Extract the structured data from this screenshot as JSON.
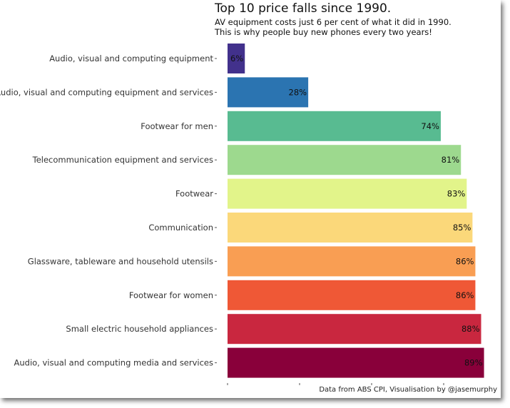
{
  "chart_data": {
    "type": "bar",
    "orientation": "horizontal",
    "title": "Top 10 price falls since 1990.",
    "subtitle": [
      "AV equipment costs just 6 per cent of what it did in 1990.",
      "This is why people buy new phones every two years!"
    ],
    "caption": "Data from ABS CPI, Visualisation by @jasemurphy",
    "xlabel": "",
    "ylabel": "",
    "xlim": [
      0,
      89
    ],
    "x_ticks": [
      0,
      25,
      50,
      75
    ],
    "x_tick_labels_shown": false,
    "grid": false,
    "categories": [
      "Audio, visual and computing equipment",
      "Audio, visual and computing equipment and services",
      "Footwear for men",
      "Telecommunication equipment and services",
      "Footwear",
      "Communication",
      "Glassware, tableware and household utensils",
      "Footwear for women",
      "Small electric household appliances",
      "Audio, visual and computing media and services"
    ],
    "values": [
      6,
      28,
      74,
      81,
      83,
      85,
      86,
      86,
      88,
      89
    ],
    "data_labels": [
      "6%",
      "28%",
      "74%",
      "81%",
      "83%",
      "85%",
      "86%",
      "86%",
      "88%",
      "89%"
    ],
    "colors": [
      "#42318c",
      "#2b74b1",
      "#58bb91",
      "#9dd98e",
      "#e2f48a",
      "#fbd87a",
      "#f99e53",
      "#ef5836",
      "#c9273f",
      "#89003a"
    ]
  }
}
